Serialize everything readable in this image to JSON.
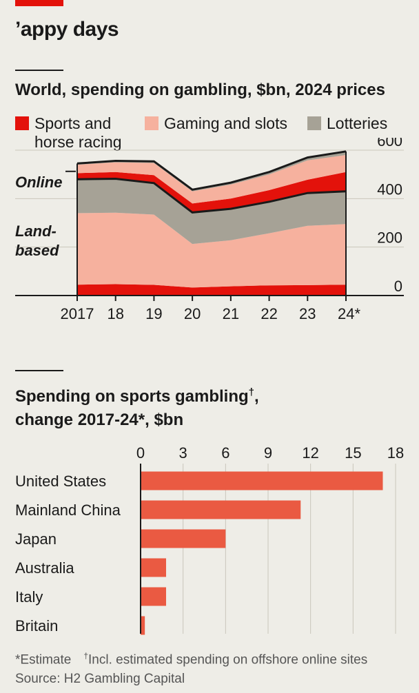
{
  "headline": "’appy days",
  "chart1_title": "World, spending on gambling, $bn, 2024 prices",
  "legend": {
    "sports_line1": "Sports and",
    "sports_line2": "horse racing",
    "gaming": "Gaming and slots",
    "lotteries": "Lotteries"
  },
  "labels": {
    "online": "Online",
    "land_line1": "Land-",
    "land_line2": "based"
  },
  "chart2_title": {
    "line1": "Spending on sports gambling",
    "dagger": "†",
    "line1_end": ",",
    "line2": "change 2017-24*, $bn"
  },
  "footnotes": {
    "estimate": "*Estimate",
    "dagger": "†",
    "offshore": "Incl. estimated spending on offshore online sites",
    "source": "Source: H2 Gambling Capital"
  },
  "colors": {
    "sports": "#e3120b",
    "gaming": "#f6b19e",
    "lotteries": "#a6a296",
    "bar": "#ea5a42",
    "background": "#eeede7"
  },
  "chart_data": [
    {
      "type": "area",
      "title": "World, spending on gambling, $bn, 2024 prices",
      "x": [
        2017,
        2018,
        2019,
        2020,
        2021,
        2022,
        2023,
        2024
      ],
      "x_tick_labels": [
        "2017",
        "18",
        "19",
        "20",
        "21",
        "22",
        "23",
        "24*"
      ],
      "ylim": [
        0,
        600
      ],
      "y_ticks": [
        0,
        200,
        400,
        600
      ],
      "y_axis_position": "right",
      "grid": true,
      "groups": [
        "Land-based",
        "Online"
      ],
      "series": [
        {
          "name": "Sports and horse racing",
          "group": "Land-based",
          "values": [
            45,
            47,
            44,
            33,
            38,
            42,
            43,
            45
          ]
        },
        {
          "name": "Gaming and slots",
          "group": "Land-based",
          "values": [
            295,
            295,
            290,
            180,
            190,
            215,
            245,
            250
          ]
        },
        {
          "name": "Lotteries",
          "group": "Land-based",
          "values": [
            140,
            140,
            130,
            130,
            130,
            130,
            135,
            135
          ]
        },
        {
          "name": "Sports and horse racing",
          "group": "Online",
          "values": [
            25,
            28,
            33,
            37,
            42,
            48,
            55,
            80
          ]
        },
        {
          "name": "Gaming and slots",
          "group": "Online",
          "values": [
            35,
            40,
            50,
            50,
            58,
            65,
            80,
            70
          ]
        },
        {
          "name": "Lotteries",
          "group": "Online",
          "values": [
            5,
            6,
            7,
            7,
            8,
            10,
            12,
            15
          ]
        }
      ]
    },
    {
      "type": "bar",
      "orientation": "horizontal",
      "title": "Spending on sports gambling†, change 2017-24*, $bn",
      "categories": [
        "United States",
        "Mainland China",
        "Japan",
        "Australia",
        "Italy",
        "Britain"
      ],
      "values": [
        17.1,
        11.3,
        6.0,
        1.8,
        1.8,
        0.3
      ],
      "xlim": [
        0,
        18
      ],
      "x_ticks": [
        0,
        3,
        6,
        9,
        12,
        15,
        18
      ],
      "grid": true
    }
  ]
}
